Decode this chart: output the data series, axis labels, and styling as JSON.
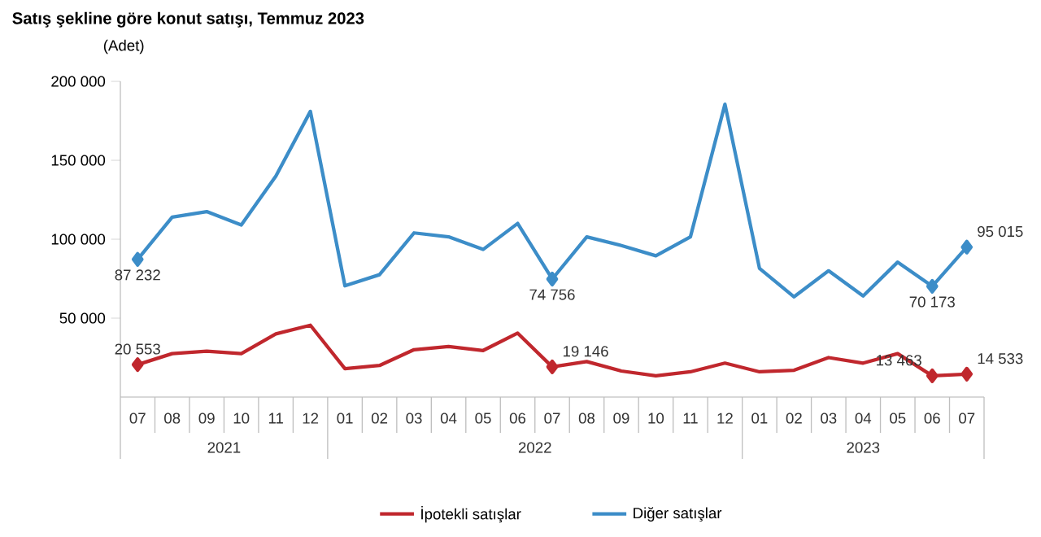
{
  "chart_data": {
    "type": "line",
    "title": "Satış şekline göre konut satışı, Temmuz 2023",
    "ylabel": "(Adet)",
    "categories": [
      "07",
      "08",
      "09",
      "10",
      "11",
      "12",
      "01",
      "02",
      "03",
      "04",
      "05",
      "06",
      "07",
      "08",
      "09",
      "10",
      "11",
      "12",
      "01",
      "02",
      "03",
      "04",
      "05",
      "06",
      "07"
    ],
    "annotations": [
      "2021",
      "2022",
      "2023"
    ],
    "ylim": [
      0,
      200000
    ],
    "yticks": [
      {
        "value": 50000,
        "label": "50 000"
      },
      {
        "value": 100000,
        "label": "100 000"
      },
      {
        "value": 150000,
        "label": "150 000"
      },
      {
        "value": 200000,
        "label": "200 000"
      }
    ],
    "legend": "bottom",
    "line_style": "solid",
    "grid": false,
    "series": [
      {
        "name": "İpotekli satışlar",
        "color": "#c0272d",
        "values": [
          20553,
          27500,
          29000,
          27500,
          40000,
          45500,
          18000,
          20000,
          30000,
          32000,
          29500,
          40500,
          19146,
          22500,
          16500,
          13500,
          16000,
          21500,
          16000,
          17000,
          25000,
          21500,
          27500,
          13463,
          14533
        ],
        "value_labels": [
          "20 553",
          null,
          null,
          null,
          null,
          null,
          null,
          null,
          null,
          null,
          null,
          null,
          "19 146",
          null,
          null,
          null,
          null,
          null,
          null,
          null,
          null,
          null,
          null,
          "13 463",
          "14 533"
        ]
      },
      {
        "name": "Diğer satışlar",
        "color": "#3c8dc8",
        "values": [
          87232,
          114000,
          117500,
          109000,
          140000,
          181000,
          70500,
          77500,
          104000,
          101500,
          93500,
          110000,
          74756,
          101500,
          96000,
          89500,
          101500,
          185500,
          81500,
          63500,
          80000,
          64000,
          85500,
          70173,
          95015
        ],
        "value_labels": [
          "87 232",
          null,
          null,
          null,
          null,
          null,
          null,
          null,
          null,
          null,
          null,
          null,
          "74 756",
          null,
          null,
          null,
          null,
          null,
          null,
          null,
          null,
          null,
          null,
          "70 173",
          "95 015"
        ]
      }
    ]
  }
}
